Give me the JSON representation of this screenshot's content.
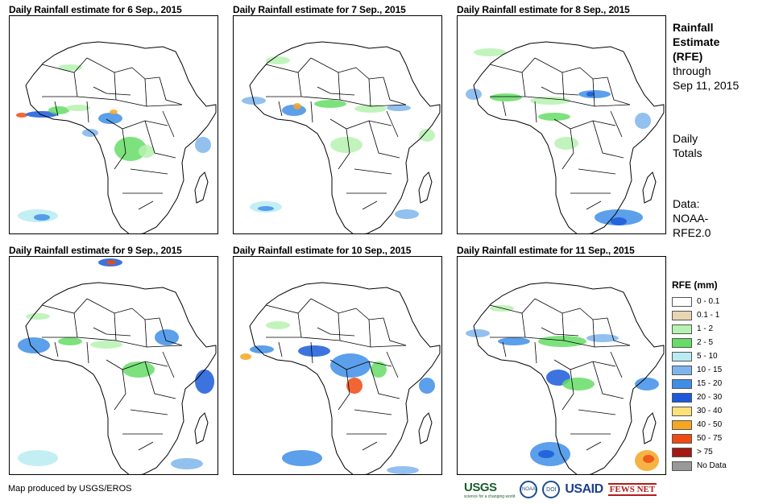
{
  "panels": [
    {
      "title": "Daily Rainfall estimate for 6 Sep., 2015"
    },
    {
      "title": "Daily Rainfall estimate for 7 Sep., 2015"
    },
    {
      "title": "Daily Rainfall estimate for 8 Sep., 2015"
    },
    {
      "title": "Daily Rainfall estimate for 9 Sep., 2015"
    },
    {
      "title": "Daily Rainfall estimate for 10 Sep., 2015"
    },
    {
      "title": "Daily Rainfall estimate for 11 Sep., 2015"
    }
  ],
  "sidebar": {
    "title_lines": [
      "Rainfall",
      "Estimate",
      "(RFE)"
    ],
    "through_lines": [
      "through",
      "Sep 11, 2015"
    ],
    "totals_lines": [
      "Daily",
      "Totals"
    ],
    "data_lines": [
      "Data:",
      "NOAA-",
      "RFE2.0"
    ]
  },
  "legend": {
    "title": "RFE (mm)",
    "items": [
      {
        "label": "0 - 0.1",
        "color": "#ffffff"
      },
      {
        "label": "0.1 - 1",
        "color": "#e8d5b4"
      },
      {
        "label": "1 - 2",
        "color": "#b6f2b0"
      },
      {
        "label": "2 - 5",
        "color": "#66dd66"
      },
      {
        "label": "5 - 10",
        "color": "#b8ecf2"
      },
      {
        "label": "10 - 15",
        "color": "#7fb5ec"
      },
      {
        "label": "15 - 20",
        "color": "#3f8ee6"
      },
      {
        "label": "20 - 30",
        "color": "#1a5ad8"
      },
      {
        "label": "30 - 40",
        "color": "#fde07a"
      },
      {
        "label": "40 - 50",
        "color": "#f5a623"
      },
      {
        "label": "50 - 75",
        "color": "#f04a12"
      },
      {
        "label": "> 75",
        "color": "#a31a12"
      },
      {
        "label": "No Data",
        "color": "#999999"
      }
    ]
  },
  "footer": {
    "credit": "Map produced by USGS/EROS"
  },
  "logos": {
    "usgs": "USGS",
    "usgs_tagline": "science for a changing world",
    "noaa": "NOAA",
    "doi": "DOI",
    "usaid": "USAID",
    "fews": "FEWS NET"
  }
}
